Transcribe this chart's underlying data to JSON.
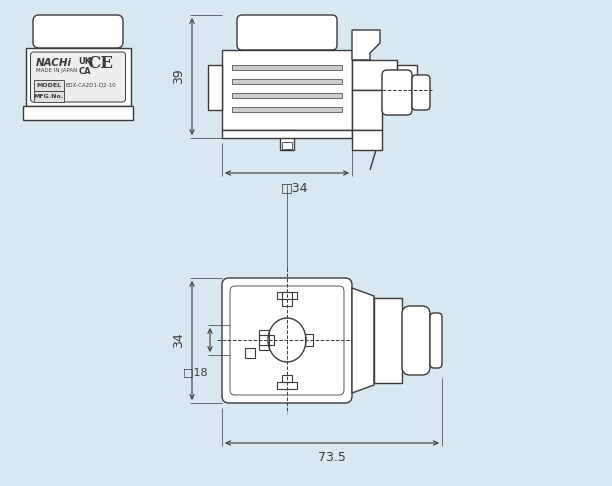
{
  "bg_color": "#d8e8f0",
  "line_color": "#3a3a3a",
  "fig_width": 6.12,
  "fig_height": 4.86,
  "dpi": 100,
  "nachi_label": "NACHi",
  "made_in_japan": "MADE IN JAPAN",
  "uk_ca": "UK\nCA",
  "model_text": "MODEL",
  "mfg_text": "MFG.No.",
  "model_num": "EDX-CA2D1-D2-10",
  "dim_39": "39",
  "dim_34_sq": "□34",
  "dim_34": "34",
  "dim_18_sq": "□18",
  "dim_73_5": "73.5"
}
